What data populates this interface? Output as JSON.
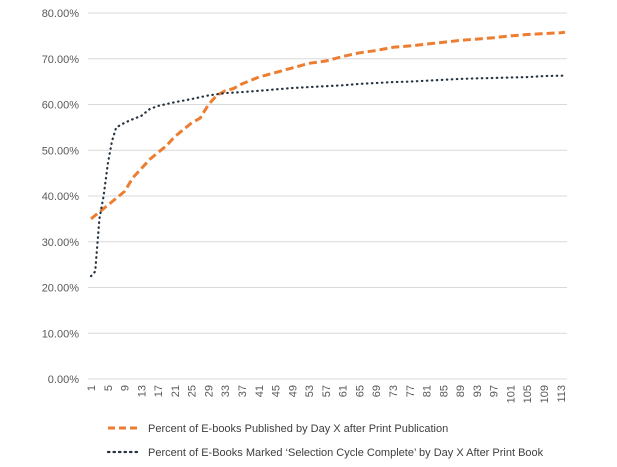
{
  "chart_data": {
    "type": "line",
    "title": "",
    "xlabel": "",
    "ylabel": "",
    "ylim": [
      0,
      80
    ],
    "xlim": [
      1,
      114
    ],
    "y_tick_labels": [
      "0.00%",
      "10.00%",
      "20.00%",
      "30.00%",
      "40.00%",
      "50.00%",
      "60.00%",
      "70.00%",
      "80.00%"
    ],
    "x_tick_labels": [
      "1",
      "5",
      "9",
      "13",
      "17",
      "21",
      "25",
      "29",
      "33",
      "37",
      "41",
      "45",
      "49",
      "53",
      "57",
      "61",
      "65",
      "69",
      "73",
      "77",
      "81",
      "85",
      "89",
      "93",
      "97",
      "101",
      "105",
      "109",
      "113"
    ],
    "grid": "horizontal",
    "legend_position": "bottom",
    "series": [
      {
        "name": "Percent of E-books Published by Day X after Print Publication",
        "color": "#ED7D31",
        "style": "dashed",
        "x": [
          1,
          3,
          5,
          7,
          9,
          11,
          13,
          15,
          17,
          19,
          21,
          23,
          25,
          27,
          29,
          31,
          33,
          35,
          37,
          41,
          45,
          49,
          53,
          57,
          61,
          65,
          69,
          73,
          77,
          81,
          85,
          89,
          93,
          97,
          101,
          105,
          109,
          113,
          114
        ],
        "y": [
          35,
          36.5,
          38,
          39.5,
          41,
          44,
          46,
          48,
          49.5,
          51,
          53,
          54.5,
          56,
          57,
          60,
          62,
          63,
          63.5,
          64.5,
          66,
          67,
          68,
          69,
          69.5,
          70.5,
          71.3,
          71.8,
          72.5,
          72.8,
          73.2,
          73.6,
          74,
          74.3,
          74.6,
          75,
          75.3,
          75.5,
          75.7,
          75.8
        ]
      },
      {
        "name": "Percent of E-Books Marked ‘Selection Cycle Complete’ by Day X After Print Book",
        "color": "#263340",
        "style": "dotted",
        "x": [
          1,
          2,
          3,
          4,
          5,
          6,
          7,
          9,
          11,
          13,
          15,
          17,
          21,
          25,
          29,
          33,
          37,
          41,
          45,
          49,
          53,
          57,
          61,
          65,
          69,
          73,
          77,
          81,
          85,
          89,
          93,
          97,
          101,
          105,
          109,
          113,
          114
        ],
        "y": [
          22.5,
          23.5,
          35,
          40,
          47,
          52,
          55,
          56,
          56.8,
          57.5,
          59,
          59.7,
          60.5,
          61.2,
          62,
          62.5,
          62.7,
          63,
          63.3,
          63.6,
          63.8,
          64,
          64.2,
          64.5,
          64.7,
          64.9,
          65,
          65.2,
          65.4,
          65.6,
          65.7,
          65.8,
          65.9,
          66,
          66.2,
          66.3,
          66.3
        ]
      }
    ]
  }
}
